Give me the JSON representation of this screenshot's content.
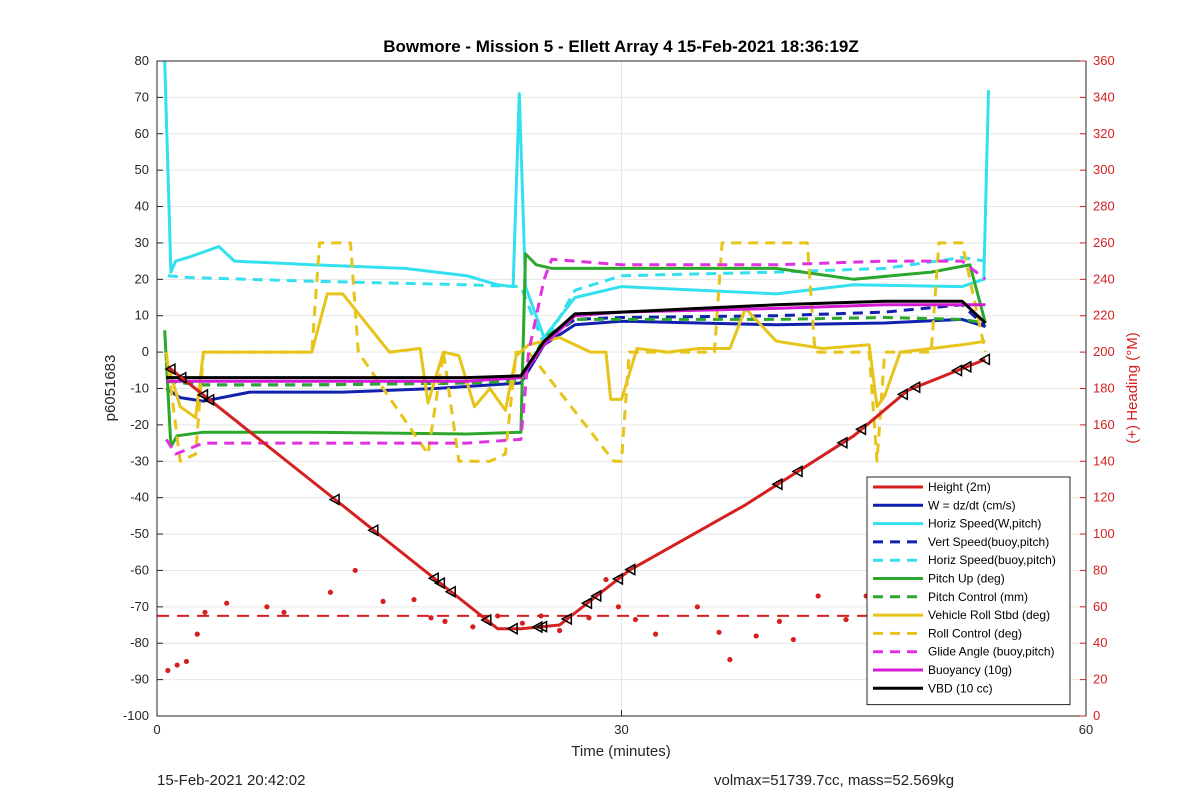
{
  "chart_data": {
    "type": "line",
    "title": "Bowmore - Mission 5 - Ellett Array 4 15-Feb-2021 18:36:19Z",
    "xlabel": "Time (minutes)",
    "ylabel": "p6051683",
    "ylabel_right": "(+) Heading (°M)",
    "xlim": [
      0,
      60
    ],
    "ylim": [
      -100,
      80
    ],
    "ylim_right": [
      0,
      360
    ],
    "x_ticks": [
      0,
      30,
      60
    ],
    "y_ticks": [
      -100,
      -90,
      -80,
      -70,
      -60,
      -50,
      -40,
      -30,
      -20,
      -10,
      0,
      10,
      20,
      30,
      40,
      50,
      60,
      70,
      80
    ],
    "y_ticks_right": [
      0,
      20,
      40,
      60,
      80,
      100,
      120,
      140,
      160,
      180,
      200,
      220,
      240,
      260,
      280,
      300,
      320,
      340,
      360
    ],
    "grid": true,
    "legend_position": "bottom-right",
    "series": [
      {
        "name": "Height (2m)",
        "color": "#d62020",
        "style": "solid",
        "axis": "left",
        "x": [
          0.7,
          11.5,
          22,
          23.5,
          26,
          30.5,
          38,
          45,
          48.5,
          53.5
        ],
        "y": [
          -4,
          -40.5,
          -76,
          -76,
          -75,
          -60,
          -42,
          -23,
          -10.5,
          -2
        ],
        "markers_x": [
          0.9,
          1.6,
          3.0,
          3.4,
          11.5,
          14.0,
          17.9,
          18.3,
          19.0,
          21.3,
          23.0,
          24.6,
          24.9,
          26.5,
          27.8,
          28.4,
          29.8,
          30.6,
          40.1,
          41.4,
          44.3,
          45.5,
          48.2,
          49.0,
          51.7,
          52.3,
          53.5
        ]
      },
      {
        "name": "W = dz/dt (cm/s)",
        "color": "#1220b0",
        "style": "solid",
        "axis": "left",
        "x": [
          0.6,
          1.5,
          3,
          6,
          12,
          18,
          23.5,
          25,
          27,
          30,
          35,
          40,
          47,
          52,
          53.5
        ],
        "y": [
          -10,
          -12.5,
          -13.5,
          -11,
          -11,
          -10,
          -8.5,
          2,
          7.5,
          8.5,
          8,
          7.5,
          8,
          9,
          7
        ]
      },
      {
        "name": "Horiz Speed(W,pitch)",
        "color": "#33e0f0",
        "style": "solid",
        "axis": "left",
        "x": [
          0.5,
          0.9,
          1.2,
          2,
          4,
          5,
          10,
          16,
          20,
          22,
          23,
          23.4,
          23.8,
          25,
          27,
          30,
          40,
          45,
          52,
          53.4,
          53.7
        ],
        "y": [
          80,
          22,
          25,
          26,
          29,
          25,
          24,
          23,
          21,
          18.5,
          18,
          71,
          18,
          4,
          15,
          18,
          16,
          18.5,
          18,
          20,
          72
        ]
      },
      {
        "name": "Vert Speed(buoy,pitch)",
        "color": "#1220b0",
        "style": "dashed",
        "axis": "left",
        "x": [
          0.6,
          3,
          10,
          20,
          23.5,
          25,
          27,
          30,
          40,
          47,
          52,
          53.5
        ],
        "y": [
          -8,
          -9,
          -9,
          -8.5,
          -7,
          3,
          9,
          9.5,
          10,
          11,
          13,
          7
        ]
      },
      {
        "name": "Horiz Speed(buoy,pitch)",
        "color": "#33e0f0",
        "style": "dashed",
        "axis": "left",
        "x": [
          0.7,
          2,
          10,
          20,
          23.5,
          25,
          27,
          30,
          40,
          47,
          52,
          53.5
        ],
        "y": [
          21,
          20.5,
          19.5,
          18.5,
          18,
          2,
          17,
          21,
          22,
          23,
          26,
          25
        ]
      },
      {
        "name": "Pitch Up (deg)",
        "color": "#2ba82b",
        "style": "solid",
        "axis": "left",
        "x": [
          0.5,
          0.9,
          1.3,
          3,
          10,
          20,
          23.5,
          23.8,
          24.5,
          25.5,
          30,
          40,
          45,
          50,
          52.5,
          53.5
        ],
        "y": [
          6,
          -26,
          -23,
          -22,
          -22,
          -22.5,
          -22,
          27,
          24,
          23,
          23,
          23,
          20,
          22,
          24,
          8
        ]
      },
      {
        "name": "Pitch Control (mm)",
        "color": "#2ba82b",
        "style": "dashed",
        "axis": "left",
        "x": [
          0.6,
          3,
          10,
          20,
          23.5,
          25,
          27,
          30,
          40,
          47,
          52,
          53.5
        ],
        "y": [
          -8,
          -9,
          -9,
          -8.5,
          -8,
          4,
          9,
          9,
          9,
          9.5,
          9,
          8
        ]
      },
      {
        "name": "Vehicle Roll Stbd (deg)",
        "color": "#e6c41a",
        "style": "solid",
        "axis": "left",
        "x": [
          0.6,
          1.5,
          2.5,
          3,
          8,
          10,
          11,
          12,
          15,
          17,
          17.5,
          18.5,
          19.5,
          20.5,
          21.5,
          22.5,
          23.2,
          24,
          26,
          28,
          29,
          29.3,
          30,
          31,
          33,
          35,
          37,
          38,
          40,
          43,
          46,
          46.5,
          47,
          48,
          50,
          52,
          53.5
        ],
        "y": [
          -2,
          -15,
          -18,
          0,
          0,
          0,
          16,
          16,
          0,
          1,
          -14,
          0,
          -1,
          -15,
          -10,
          -16,
          -1,
          2,
          4,
          0,
          0,
          -13,
          -13,
          1,
          0,
          1,
          1,
          12,
          3,
          1,
          2,
          -15,
          -12,
          0,
          1,
          2,
          3
        ]
      },
      {
        "name": "Roll Control (deg)",
        "color": "#e6c41a",
        "style": "dashed",
        "axis": "left",
        "x": [
          0.6,
          1.5,
          2.5,
          3,
          10,
          10.5,
          12.5,
          13,
          17.5,
          18.5,
          19.5,
          20.5,
          21.5,
          22.5,
          23.2,
          24,
          29.5,
          30,
          30.5,
          36,
          36.5,
          42,
          42.5,
          46,
          46.5,
          47,
          50,
          50.5,
          52,
          53.5
        ],
        "y": [
          0,
          -30,
          -28,
          0,
          0,
          30,
          30,
          0,
          -28,
          0,
          -30,
          -30,
          -30,
          -28,
          0,
          0,
          -30,
          -30,
          0,
          0,
          30,
          30,
          0,
          0,
          -30,
          0,
          0,
          30,
          30,
          0
        ]
      },
      {
        "name": "Glide Angle (buoy,pitch)",
        "color": "#e032e0",
        "style": "dashed",
        "axis": "left",
        "x": [
          0.6,
          1.2,
          3,
          10,
          20,
          23.5,
          24,
          25,
          25.5,
          30,
          40,
          47,
          52,
          53.5
        ],
        "y": [
          -24,
          -28,
          -25,
          -25,
          -25,
          -24,
          0,
          20,
          25.5,
          24,
          24,
          25,
          25,
          20
        ]
      },
      {
        "name": "Buoyancy (10g)",
        "color": "#d21bd2",
        "style": "solid",
        "axis": "left",
        "x": [
          0.6,
          3,
          10,
          20,
          23.5,
          25,
          27,
          30,
          40,
          47,
          53.5
        ],
        "y": [
          -8,
          -8,
          -8,
          -8,
          -7,
          2,
          10,
          11,
          12,
          13,
          13
        ]
      },
      {
        "name": "VBD (10 cc)",
        "color": "#000000",
        "style": "solid",
        "axis": "left",
        "x": [
          0.6,
          3,
          10,
          20,
          23.5,
          25,
          27,
          30,
          35,
          40,
          47,
          52,
          53.5
        ],
        "y": [
          -7,
          -7,
          -7,
          -7,
          -6.5,
          3,
          10.5,
          11,
          12,
          13,
          14,
          14,
          8
        ]
      },
      {
        "name": "",
        "color": "#d62020",
        "style": "points",
        "axis": "right",
        "x": [
          0.7,
          1.3,
          1.9,
          2.6,
          3.1,
          4.5,
          7.1,
          8.2,
          11.2,
          12.8,
          14.6,
          16.6,
          17.7,
          18.6,
          20.4,
          22.0,
          23.6,
          24.8,
          26.0,
          27.9,
          29.0,
          29.8,
          30.9,
          32.2,
          34.9,
          36.3,
          37.0,
          38.7,
          40.2,
          41.1,
          42.7,
          44.5,
          45.8,
          47.2,
          48.0,
          49.6,
          51.0,
          52.2
        ],
        "y": [
          25,
          28,
          30,
          45,
          57,
          62,
          60,
          57,
          68,
          80,
          63,
          64,
          54,
          52,
          49,
          55,
          51,
          55,
          47,
          54,
          75,
          60,
          53,
          45,
          60,
          46,
          31,
          44,
          52,
          42,
          66,
          53,
          66,
          56,
          69,
          67,
          63,
          60
        ]
      },
      {
        "name": "",
        "color": "#d62020",
        "style": "dashed-ref",
        "axis": "right",
        "x": [
          0,
          55
        ],
        "y": [
          55,
          55
        ]
      }
    ]
  },
  "footer": {
    "timestamp": "15-Feb-2021 20:42:02",
    "summary": "volmax=51739.7cc, mass=52.569kg"
  }
}
